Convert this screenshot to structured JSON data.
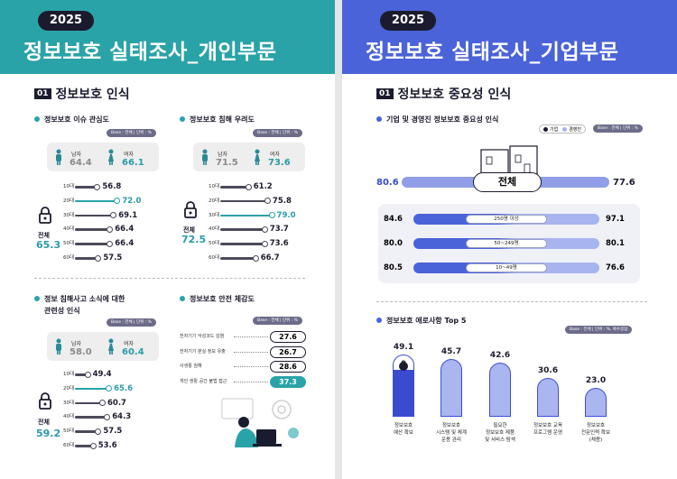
{
  "colors": {
    "teal": "#2aa3a8",
    "teal_text": "#2b9aa8",
    "blue": "#4a63d8",
    "blue_light": "#a8b4ee",
    "dark": "#1b1b2f",
    "accent": "#3a4bd0"
  },
  "left": {
    "year": "2025",
    "title": "정보보호 실태조사_개인부문",
    "section_num": "01",
    "section_title": "정보보호 인식",
    "badge": "Base : 전체 | 단위 : %",
    "interest": {
      "title": "정보보호 이슈 관심도",
      "male_label": "남자",
      "male_value": "64.4",
      "female_label": "여자",
      "female_value": "66.1",
      "total_label": "전체",
      "total_value": "65.3",
      "rows": [
        {
          "age": "10대",
          "value": "56.8",
          "pct": 56.8,
          "highlight": false
        },
        {
          "age": "20대",
          "value": "72.0",
          "pct": 72.0,
          "highlight": true
        },
        {
          "age": "30대",
          "value": "69.1",
          "pct": 69.1,
          "highlight": false
        },
        {
          "age": "40대",
          "value": "66.4",
          "pct": 66.4,
          "highlight": false
        },
        {
          "age": "50대",
          "value": "66.4",
          "pct": 66.4,
          "highlight": false
        },
        {
          "age": "60대",
          "value": "57.5",
          "pct": 57.5,
          "highlight": false
        }
      ]
    },
    "concern": {
      "title": "정보보호 침해 우려도",
      "male_label": "남자",
      "male_value": "71.5",
      "female_label": "여자",
      "female_value": "73.6",
      "total_label": "전체",
      "total_value": "72.5",
      "rows": [
        {
          "age": "10대",
          "value": "61.2",
          "pct": 61.2,
          "highlight": false
        },
        {
          "age": "20대",
          "value": "75.8",
          "pct": 75.8,
          "highlight": false
        },
        {
          "age": "30대",
          "value": "79.0",
          "pct": 79.0,
          "highlight": true
        },
        {
          "age": "40대",
          "value": "73.7",
          "pct": 73.7,
          "highlight": false
        },
        {
          "age": "50대",
          "value": "73.6",
          "pct": 73.6,
          "highlight": false
        },
        {
          "age": "60대",
          "value": "66.7",
          "pct": 66.7,
          "highlight": false
        }
      ]
    },
    "relevance": {
      "title_line1": "정보 침해사고 소식에 대한",
      "title_line2": "관련성 인식",
      "male_label": "남자",
      "male_value": "58.0",
      "female_label": "여자",
      "female_value": "60.4",
      "total_label": "전체",
      "total_value": "59.2",
      "rows": [
        {
          "age": "10대",
          "value": "49.4",
          "pct": 49.4,
          "highlight": false
        },
        {
          "age": "20대",
          "value": "65.6",
          "pct": 65.6,
          "highlight": true
        },
        {
          "age": "30대",
          "value": "60.7",
          "pct": 60.7,
          "highlight": false
        },
        {
          "age": "40대",
          "value": "64.3",
          "pct": 64.3,
          "highlight": false
        },
        {
          "age": "50대",
          "value": "57.5",
          "pct": 57.5,
          "highlight": false
        },
        {
          "age": "60대",
          "value": "53.6",
          "pct": 53.6,
          "highlight": false
        }
      ]
    },
    "safety": {
      "title": "정보보호 안전 체감도",
      "rows": [
        {
          "label": "전자기기 악성코드 감염",
          "value": "27.6",
          "highlight": false
        },
        {
          "label": "전자기기 분실 정보 유출",
          "value": "26.7",
          "highlight": false
        },
        {
          "label": "사생활 침해",
          "value": "28.6",
          "highlight": false
        },
        {
          "label": "개인 생활 공간 불법 접근",
          "value": "37.3",
          "highlight": true
        }
      ]
    }
  },
  "right": {
    "year": "2025",
    "title": "정보보호 실태조사_기업부문",
    "section_num": "01",
    "section_title": "정보보호 중요성 인식",
    "importance": {
      "title": "기업 및 경영진 정보보호 중요성 인식",
      "legend_company": "기업",
      "legend_exec": "경영진",
      "badge": "Base : 전체 | 단위 : %",
      "total_label": "전체",
      "total_company": "80.6",
      "total_exec": "77.6",
      "rows": [
        {
          "label": "250명 이상",
          "company": "84.6",
          "exec": "97.1"
        },
        {
          "label": "50~249명",
          "company": "80.0",
          "exec": "80.1"
        },
        {
          "label": "10~49명",
          "company": "80.5",
          "exec": "76.6"
        }
      ]
    },
    "difficulty": {
      "title": "정보보호 애로사항 Top 5",
      "badge": "Base : 전체 | 단위 : %, 복수응답",
      "items": [
        {
          "value": "49.1",
          "pct": 49.1,
          "label": "정보보호\n예산 확보",
          "highlight": true
        },
        {
          "value": "45.7",
          "pct": 45.7,
          "label": "정보보호\n시스템 및 체계\n운용 관리",
          "highlight": false
        },
        {
          "value": "42.6",
          "pct": 42.6,
          "label": "필요한\n정보보호 제품\n및 서비스 탐색",
          "highlight": false
        },
        {
          "value": "30.6",
          "pct": 30.6,
          "label": "정보보호 교육\n프로그램 운영",
          "highlight": false
        },
        {
          "value": "23.0",
          "pct": 23.0,
          "label": "정보보호\n전문인력 확보\n(채용)",
          "highlight": false
        }
      ]
    }
  }
}
